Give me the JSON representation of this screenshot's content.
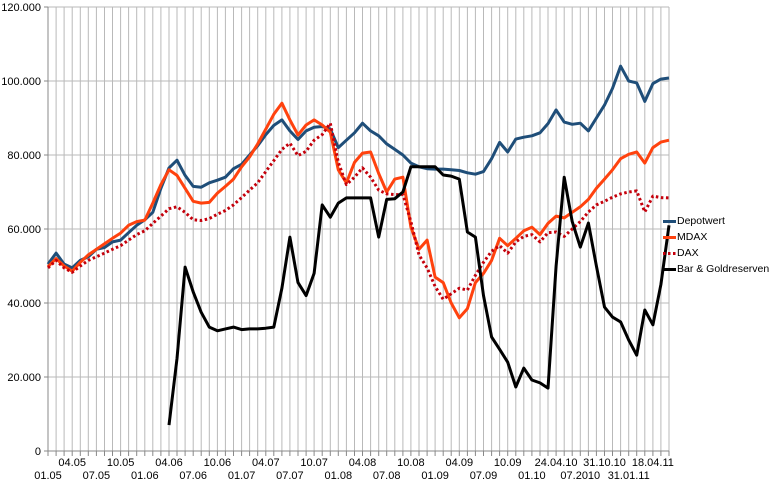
{
  "chart_data": {
    "type": "line",
    "title": "",
    "xlabel": "",
    "ylabel": "",
    "grid": true,
    "legend_position": "right",
    "x_count": 78,
    "label_every": 3,
    "x_labels": [
      "01.05",
      "04.05",
      "07.05",
      "10.05",
      "01.06",
      "04.06",
      "07.06",
      "10.06",
      "01.07",
      "04.07",
      "07.07",
      "10.07",
      "01.08",
      "04.08",
      "07.08",
      "10.08",
      "01.09",
      "04.09",
      "07.09",
      "10.09",
      "01.10",
      "24.04.10",
      "07.2010",
      "31.10.10",
      "31.01.11",
      "18.04.11"
    ],
    "yticks": [
      "0",
      "20.000",
      "40.000",
      "60.000",
      "80.000",
      "100.000",
      "120.000"
    ],
    "ylim": [
      0,
      120000
    ],
    "ytick_step": 20000,
    "colors": {
      "grid": "#b9b9b9",
      "axis": "#888888",
      "background": "#ffffff",
      "text": "#000000"
    },
    "series": [
      {
        "name": "Depotwert",
        "color": "#1F4E79",
        "style": "solid",
        "values": [
          50500,
          53500,
          50500,
          49500,
          51500,
          52500,
          54500,
          55000,
          56500,
          57000,
          59000,
          61000,
          62500,
          64500,
          71000,
          76500,
          78600,
          74500,
          71500,
          71300,
          72500,
          73200,
          74000,
          76300,
          77500,
          80000,
          82500,
          85500,
          88000,
          89500,
          86500,
          84200,
          86500,
          87500,
          87700,
          87000,
          82000,
          84000,
          86000,
          88600,
          86500,
          85200,
          83000,
          81500,
          80000,
          77800,
          76800,
          76300,
          76200,
          76200,
          76000,
          75800,
          75200,
          74800,
          75500,
          79000,
          83400,
          80800,
          84300,
          84800,
          85200,
          86000,
          88500,
          92200,
          88900,
          88300,
          88600,
          86500,
          90000,
          93500,
          98000,
          104000,
          100000,
          99500,
          94500,
          99300,
          100500,
          100800
        ]
      },
      {
        "name": "MDAX",
        "color": "#FF420E",
        "style": "solid",
        "values": [
          49800,
          52000,
          50000,
          48600,
          51000,
          53000,
          54500,
          56000,
          57500,
          58900,
          61000,
          62000,
          62400,
          67000,
          72000,
          76000,
          74500,
          71000,
          67500,
          67000,
          67200,
          69700,
          71500,
          73500,
          76800,
          79500,
          83000,
          87000,
          91000,
          94000,
          89500,
          85400,
          88100,
          89500,
          88100,
          86200,
          76000,
          72500,
          78000,
          80500,
          80800,
          75000,
          70000,
          73500,
          74000,
          60500,
          54500,
          57000,
          47000,
          45500,
          40000,
          36000,
          38500,
          45500,
          48000,
          51500,
          57500,
          55500,
          57500,
          59500,
          60500,
          58500,
          61500,
          63500,
          63000,
          64500,
          66000,
          68000,
          71000,
          73500,
          76000,
          79000,
          80200,
          80800,
          77800,
          82000,
          83500,
          84000
        ]
      },
      {
        "name": "DAX",
        "color": "#C5000B",
        "style": "dotted",
        "values": [
          49500,
          51500,
          49500,
          48300,
          50000,
          51500,
          52500,
          53500,
          54500,
          55500,
          57000,
          58500,
          59500,
          61500,
          63500,
          65500,
          66000,
          64500,
          62500,
          62300,
          62800,
          64000,
          65000,
          66500,
          68500,
          70500,
          72500,
          75500,
          78500,
          81500,
          83200,
          79800,
          81000,
          84000,
          85500,
          88600,
          78000,
          72000,
          74000,
          76500,
          74000,
          70500,
          69500,
          69300,
          69300,
          62000,
          53000,
          49500,
          44500,
          41000,
          42500,
          44000,
          43500,
          47500,
          51000,
          54000,
          55500,
          53500,
          56500,
          58000,
          58500,
          56500,
          59000,
          59200,
          58000,
          60000,
          62000,
          64600,
          66500,
          67500,
          68600,
          69500,
          70000,
          70300,
          64600,
          68900,
          68500,
          68400
        ]
      },
      {
        "name": "Bar & Goldreserven",
        "color": "#000000",
        "style": "solid",
        "values": [
          null,
          null,
          null,
          null,
          null,
          null,
          null,
          null,
          null,
          null,
          null,
          null,
          null,
          null,
          null,
          7000,
          25000,
          49700,
          43000,
          37500,
          33500,
          32500,
          33000,
          33500,
          32800,
          33000,
          33000,
          33200,
          33500,
          44000,
          57800,
          45500,
          42000,
          48000,
          66500,
          63200,
          67000,
          68400,
          68400,
          68400,
          68400,
          57800,
          68000,
          68200,
          70000,
          76800,
          76800,
          76800,
          76800,
          74600,
          74300,
          73500,
          59200,
          57800,
          42000,
          30800,
          27500,
          24000,
          17300,
          22400,
          19200,
          18400,
          17000,
          50000,
          74000,
          62000,
          55100,
          61600,
          50000,
          38900,
          36200,
          34900,
          30000,
          25900,
          38100,
          34100,
          45000,
          61000
        ]
      }
    ]
  }
}
